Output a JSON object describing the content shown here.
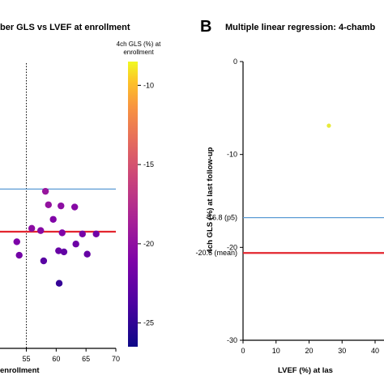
{
  "chart_data": [
    {
      "panel_label": "",
      "type": "scatter",
      "title": "ber GLS vs LVEF at enrollment",
      "xlabel": "enrollment",
      "ylabel": "",
      "xlim": [
        48,
        70
      ],
      "ylim": [
        -31,
        -5
      ],
      "x_ticks": [
        55,
        60,
        65,
        70
      ],
      "x_tick_labels": [
        "55",
        "60",
        "65",
        "70"
      ],
      "vertical_line": {
        "x": 55,
        "style": "dotted"
      },
      "reference_lines": [
        {
          "y": -16.8,
          "color": "#5b9bd5"
        },
        {
          "y": -20.6,
          "color": "#e3262f"
        }
      ],
      "points": [
        {
          "x": 58.2,
          "y": -17.0,
          "c": -19.5
        },
        {
          "x": 58.7,
          "y": -18.2,
          "c": -19.8
        },
        {
          "x": 60.8,
          "y": -18.3,
          "c": -20.2
        },
        {
          "x": 63.1,
          "y": -18.4,
          "c": -20.6
        },
        {
          "x": 59.5,
          "y": -19.5,
          "c": -21.0
        },
        {
          "x": 55.9,
          "y": -20.3,
          "c": -20.3
        },
        {
          "x": 57.4,
          "y": -20.5,
          "c": -20.6
        },
        {
          "x": 61.0,
          "y": -20.7,
          "c": -21.0
        },
        {
          "x": 64.4,
          "y": -20.8,
          "c": -21.5
        },
        {
          "x": 66.7,
          "y": -20.8,
          "c": -21.8
        },
        {
          "x": 53.4,
          "y": -21.5,
          "c": -21.2
        },
        {
          "x": 63.3,
          "y": -21.7,
          "c": -22.0
        },
        {
          "x": 60.4,
          "y": -22.3,
          "c": -22.3
        },
        {
          "x": 61.3,
          "y": -22.4,
          "c": -22.6
        },
        {
          "x": 65.2,
          "y": -22.6,
          "c": -22.4
        },
        {
          "x": 53.8,
          "y": -22.7,
          "c": -21.7
        },
        {
          "x": 57.9,
          "y": -23.2,
          "c": -23.1
        },
        {
          "x": 60.5,
          "y": -25.2,
          "c": -24.8
        }
      ],
      "colorbar": {
        "label_lines": [
          "4ch GLS (%) at",
          "enrollment"
        ],
        "range": [
          -26.5,
          -8.5
        ],
        "ticks": [
          -10,
          -15,
          -20,
          -25
        ],
        "tick_labels": [
          "-10",
          "-15",
          "-20",
          "-25"
        ]
      }
    },
    {
      "panel_label": "B",
      "type": "scatter",
      "title": "Multiple linear regression: 4-chamb",
      "xlabel": "LVEF (%) at las",
      "ylabel": "4ch GLS (%) at last follow-up",
      "xlim": [
        0,
        46
      ],
      "ylim": [
        -30,
        0
      ],
      "x_ticks": [
        0,
        10,
        20,
        30,
        40
      ],
      "x_tick_labels": [
        "0",
        "10",
        "20",
        "30",
        "40"
      ],
      "y_ticks": [
        0,
        -10,
        -20,
        -30
      ],
      "y_tick_labels": [
        "0",
        "-10",
        "-20",
        "-30"
      ],
      "reference_lines": [
        {
          "y": -16.8,
          "label": "-16.8 (p5)",
          "color": "#5b9bd5"
        },
        {
          "y": -20.6,
          "label": "-20.6 (mean)",
          "color": "#e3262f"
        }
      ],
      "points": [
        {
          "x": 26.0,
          "y": -6.9,
          "color": "#e8ea3a"
        }
      ]
    }
  ]
}
